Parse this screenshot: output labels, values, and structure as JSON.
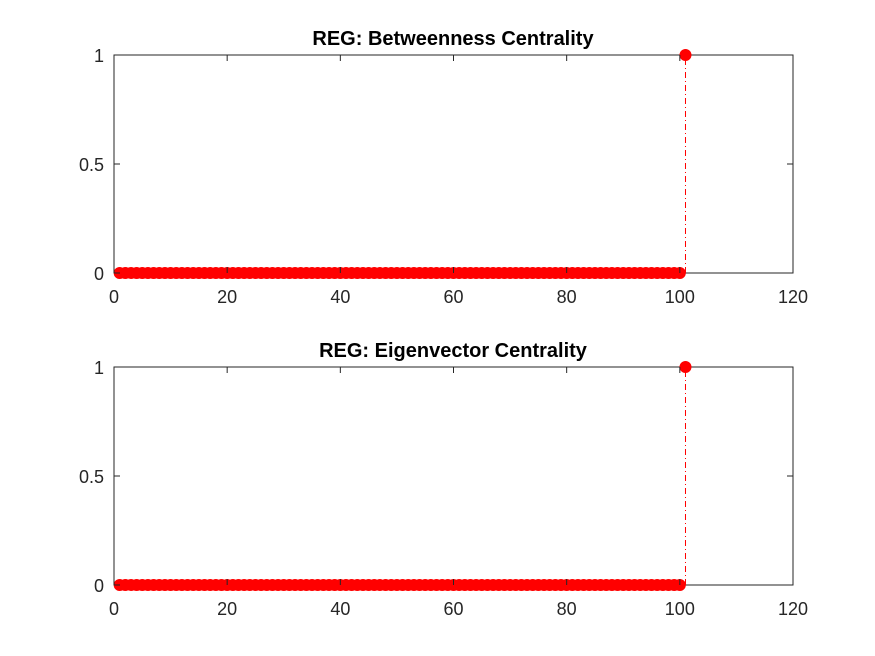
{
  "chart_data": [
    {
      "type": "scatter",
      "title": "REG: Betweenness Centrality",
      "xlabel": "",
      "ylabel": "",
      "xlim": [
        0,
        120
      ],
      "ylim": [
        0,
        1
      ],
      "xticks": [
        "0",
        "20",
        "40",
        "60",
        "80",
        "100",
        "120"
      ],
      "yticks": [
        "0",
        "0.5",
        "1"
      ],
      "grid": false,
      "series": [
        {
          "marker": "filled circle",
          "color": "#ff0000",
          "stem_style": "dash-dot",
          "x_start": 1,
          "x_end": 101,
          "values_for_x_1_to_100": 0,
          "outlier": {
            "x": 101,
            "y": 1
          }
        }
      ]
    },
    {
      "type": "scatter",
      "title": "REG: Eigenvector Centrality",
      "xlabel": "",
      "ylabel": "",
      "xlim": [
        0,
        120
      ],
      "ylim": [
        0,
        1
      ],
      "xticks": [
        "0",
        "20",
        "40",
        "60",
        "80",
        "100",
        "120"
      ],
      "yticks": [
        "0",
        "0.5",
        "1"
      ],
      "grid": false,
      "series": [
        {
          "marker": "filled circle",
          "color": "#ff0000",
          "stem_style": "dash-dot",
          "x_start": 1,
          "x_end": 101,
          "values_for_x_1_to_100": 0,
          "outlier": {
            "x": 101,
            "y": 1
          }
        }
      ]
    }
  ]
}
